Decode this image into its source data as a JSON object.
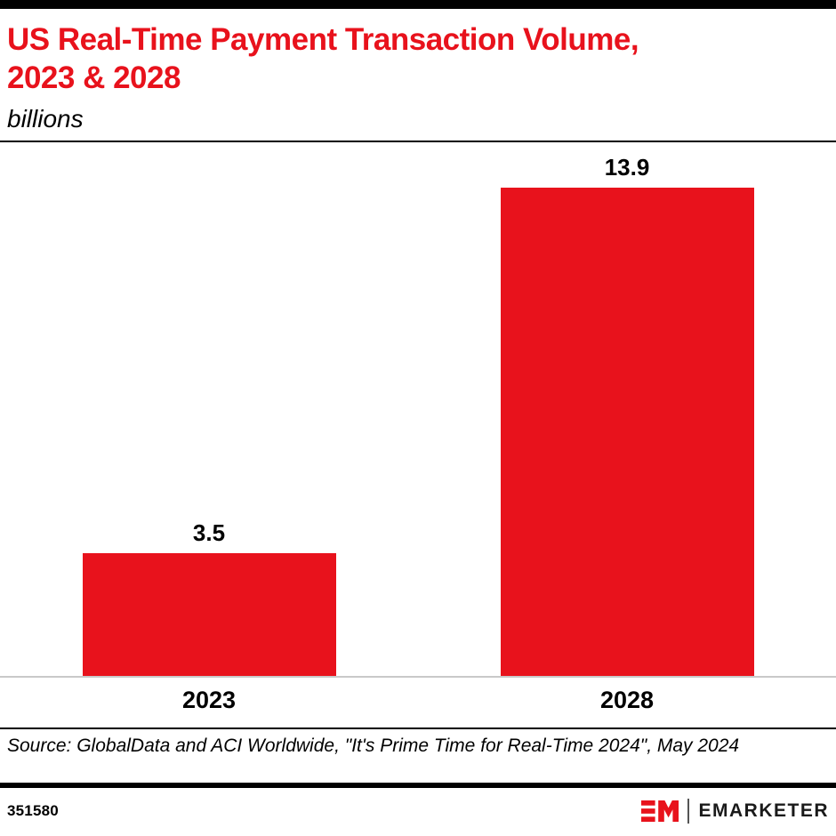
{
  "header": {
    "title_line1": "US Real-Time Payment Transaction Volume,",
    "title_line2": "2023 & 2028",
    "subtitle": "billions"
  },
  "chart_data": {
    "type": "bar",
    "title": "US Real-Time Payment Transaction Volume, 2023 & 2028",
    "ylabel": "billions",
    "categories": [
      "2023",
      "2028"
    ],
    "values": [
      3.5,
      13.9
    ],
    "value_labels": [
      "3.5",
      "13.9"
    ],
    "ylim": [
      0,
      15.2
    ],
    "grid": false,
    "legend": "none",
    "bar_color": "#e8121c"
  },
  "source": {
    "text": "Source: GlobalData and ACI Worldwide, \"It's Prime Time for Real-Time 2024\", May 2024"
  },
  "footer": {
    "chart_id": "351580",
    "brand": "EMARKETER"
  },
  "colors": {
    "accent_red": "#e8121c",
    "baseline_gray": "#c9c9c9",
    "bar_black": "#000000"
  }
}
